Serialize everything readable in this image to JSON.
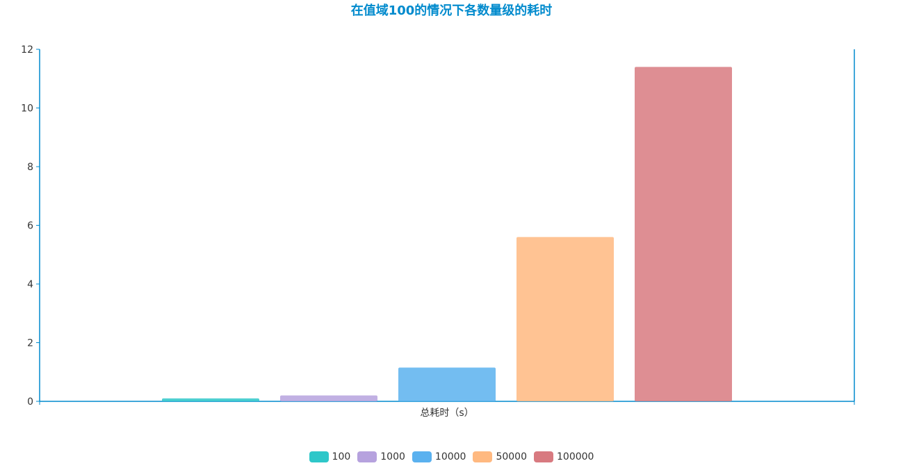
{
  "chart_data": {
    "type": "bar",
    "title": "在值域100的情况下各数量级的耗时",
    "categories": [
      "总耗时（s）"
    ],
    "series": [
      {
        "name": "100",
        "values": [
          0.1
        ],
        "color": "#2ec7c9"
      },
      {
        "name": "1000",
        "values": [
          0.2
        ],
        "color": "#b6a2de"
      },
      {
        "name": "10000",
        "values": [
          1.15
        ],
        "color": "#5ab1ef"
      },
      {
        "name": "50000",
        "values": [
          5.6
        ],
        "color": "#ffb980"
      },
      {
        "name": "100000",
        "values": [
          11.4
        ],
        "color": "#d87a80"
      }
    ],
    "ylim": [
      0,
      12
    ],
    "yticks": [
      "0",
      "2",
      "4",
      "6",
      "8",
      "10",
      "12"
    ],
    "legend_position": "bottom-center",
    "grid": false
  },
  "colors": {
    "title": "#008acd",
    "axis": "#008acd"
  }
}
